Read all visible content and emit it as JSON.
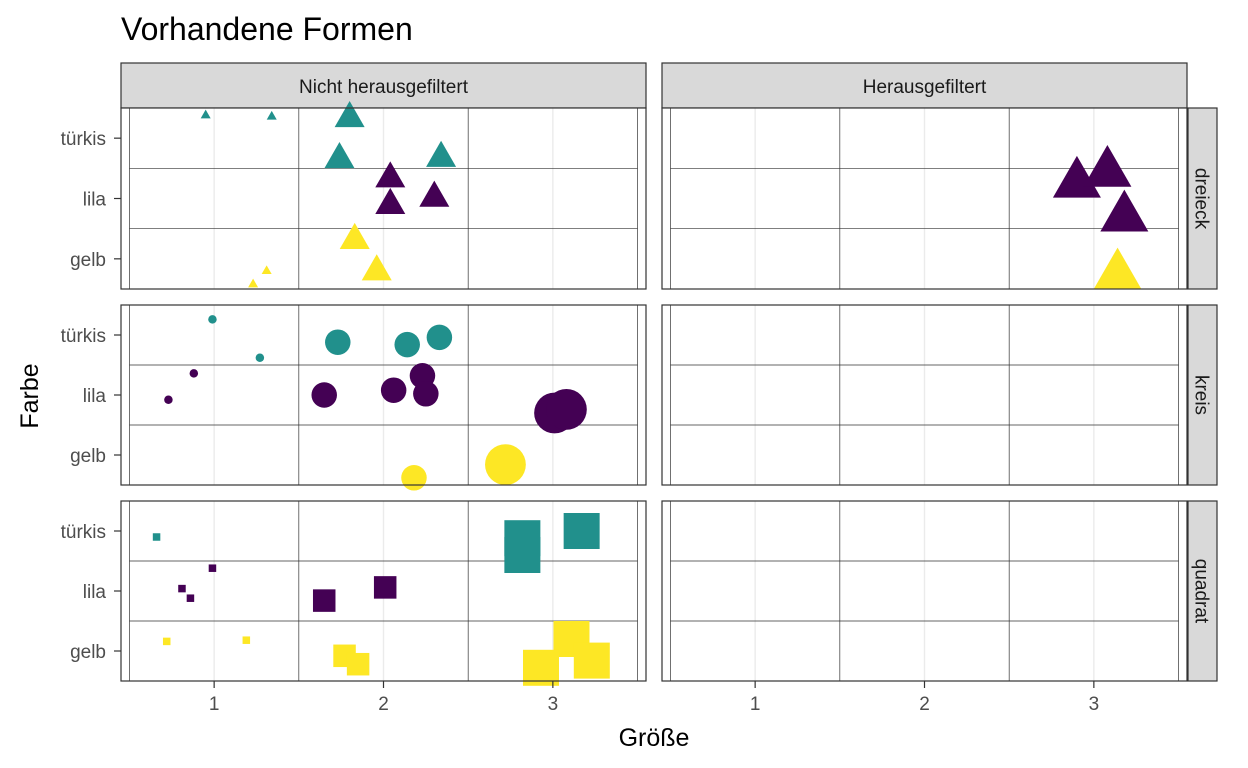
{
  "chart_data": {
    "type": "scatter",
    "title": "Vorhandene Formen",
    "xlabel": "Größe",
    "ylabel": "Farbe",
    "xlim": [
      0.45,
      3.55
    ],
    "x_ticks": [
      1,
      2,
      3
    ],
    "y_categories": [
      "gelb",
      "lila",
      "türkis"
    ],
    "grid": true,
    "facet_columns": [
      "Nicht herausgefiltert",
      "Herausgefiltert"
    ],
    "facet_rows": [
      "dreieck",
      "kreis",
      "quadrat"
    ],
    "colors": {
      "türkis": "#21908C",
      "lila": "#440154",
      "gelb": "#FDE725"
    },
    "points": [
      {
        "row": "dreieck",
        "col": "Nicht herausgefiltert",
        "farbe": "türkis",
        "x": 0.95,
        "y": 3.4,
        "size": 1
      },
      {
        "row": "dreieck",
        "col": "Nicht herausgefiltert",
        "farbe": "türkis",
        "x": 1.34,
        "y": 3.38,
        "size": 1
      },
      {
        "row": "dreieck",
        "col": "Nicht herausgefiltert",
        "farbe": "türkis",
        "x": 1.8,
        "y": 3.4,
        "size": 2
      },
      {
        "row": "dreieck",
        "col": "Nicht herausgefiltert",
        "farbe": "türkis",
        "x": 1.74,
        "y": 2.72,
        "size": 2
      },
      {
        "row": "dreieck",
        "col": "Nicht herausgefiltert",
        "farbe": "türkis",
        "x": 2.34,
        "y": 2.74,
        "size": 2
      },
      {
        "row": "dreieck",
        "col": "Nicht herausgefiltert",
        "farbe": "lila",
        "x": 2.04,
        "y": 2.4,
        "size": 2
      },
      {
        "row": "dreieck",
        "col": "Nicht herausgefiltert",
        "farbe": "lila",
        "x": 2.04,
        "y": 1.96,
        "size": 2
      },
      {
        "row": "dreieck",
        "col": "Nicht herausgefiltert",
        "farbe": "lila",
        "x": 2.3,
        "y": 2.08,
        "size": 2
      },
      {
        "row": "dreieck",
        "col": "Nicht herausgefiltert",
        "farbe": "gelb",
        "x": 1.31,
        "y": 0.82,
        "size": 1
      },
      {
        "row": "dreieck",
        "col": "Nicht herausgefiltert",
        "farbe": "gelb",
        "x": 1.23,
        "y": 0.6,
        "size": 1
      },
      {
        "row": "dreieck",
        "col": "Nicht herausgefiltert",
        "farbe": "gelb",
        "x": 1.83,
        "y": 1.38,
        "size": 2
      },
      {
        "row": "dreieck",
        "col": "Nicht herausgefiltert",
        "farbe": "gelb",
        "x": 1.96,
        "y": 0.86,
        "size": 2
      },
      {
        "row": "dreieck",
        "col": "Herausgefiltert",
        "farbe": "lila",
        "x": 2.9,
        "y": 2.36,
        "size": 3
      },
      {
        "row": "dreieck",
        "col": "Herausgefiltert",
        "farbe": "lila",
        "x": 3.08,
        "y": 2.54,
        "size": 3
      },
      {
        "row": "dreieck",
        "col": "Herausgefiltert",
        "farbe": "lila",
        "x": 3.18,
        "y": 1.8,
        "size": 3
      },
      {
        "row": "dreieck",
        "col": "Herausgefiltert",
        "farbe": "gelb",
        "x": 3.14,
        "y": 0.84,
        "size": 3
      },
      {
        "row": "kreis",
        "col": "Nicht herausgefiltert",
        "farbe": "türkis",
        "x": 0.99,
        "y": 3.26,
        "size": 1
      },
      {
        "row": "kreis",
        "col": "Nicht herausgefiltert",
        "farbe": "türkis",
        "x": 1.27,
        "y": 2.62,
        "size": 1
      },
      {
        "row": "kreis",
        "col": "Nicht herausgefiltert",
        "farbe": "türkis",
        "x": 1.73,
        "y": 2.88,
        "size": 2
      },
      {
        "row": "kreis",
        "col": "Nicht herausgefiltert",
        "farbe": "türkis",
        "x": 2.14,
        "y": 2.84,
        "size": 2
      },
      {
        "row": "kreis",
        "col": "Nicht herausgefiltert",
        "farbe": "türkis",
        "x": 2.33,
        "y": 2.96,
        "size": 2
      },
      {
        "row": "kreis",
        "col": "Nicht herausgefiltert",
        "farbe": "lila",
        "x": 0.88,
        "y": 2.36,
        "size": 1
      },
      {
        "row": "kreis",
        "col": "Nicht herausgefiltert",
        "farbe": "lila",
        "x": 0.73,
        "y": 1.92,
        "size": 1
      },
      {
        "row": "kreis",
        "col": "Nicht herausgefiltert",
        "farbe": "lila",
        "x": 1.65,
        "y": 2.0,
        "size": 2
      },
      {
        "row": "kreis",
        "col": "Nicht herausgefiltert",
        "farbe": "lila",
        "x": 2.06,
        "y": 2.08,
        "size": 2
      },
      {
        "row": "kreis",
        "col": "Nicht herausgefiltert",
        "farbe": "lila",
        "x": 2.23,
        "y": 2.32,
        "size": 2
      },
      {
        "row": "kreis",
        "col": "Nicht herausgefiltert",
        "farbe": "lila",
        "x": 2.25,
        "y": 2.02,
        "size": 2
      },
      {
        "row": "kreis",
        "col": "Nicht herausgefiltert",
        "farbe": "lila",
        "x": 3.01,
        "y": 1.7,
        "size": 3
      },
      {
        "row": "kreis",
        "col": "Nicht herausgefiltert",
        "farbe": "lila",
        "x": 3.08,
        "y": 1.76,
        "size": 3
      },
      {
        "row": "kreis",
        "col": "Nicht herausgefiltert",
        "farbe": "gelb",
        "x": 2.18,
        "y": 0.62,
        "size": 2
      },
      {
        "row": "kreis",
        "col": "Nicht herausgefiltert",
        "farbe": "gelb",
        "x": 2.72,
        "y": 0.84,
        "size": 3
      },
      {
        "row": "quadrat",
        "col": "Nicht herausgefiltert",
        "farbe": "türkis",
        "x": 0.66,
        "y": 2.9,
        "size": 1
      },
      {
        "row": "quadrat",
        "col": "Nicht herausgefiltert",
        "farbe": "türkis",
        "x": 2.82,
        "y": 2.88,
        "size": 3
      },
      {
        "row": "quadrat",
        "col": "Nicht herausgefiltert",
        "farbe": "türkis",
        "x": 2.82,
        "y": 2.6,
        "size": 3
      },
      {
        "row": "quadrat",
        "col": "Nicht herausgefiltert",
        "farbe": "türkis",
        "x": 3.17,
        "y": 3.0,
        "size": 3
      },
      {
        "row": "quadrat",
        "col": "Nicht herausgefiltert",
        "farbe": "lila",
        "x": 0.99,
        "y": 2.38,
        "size": 1
      },
      {
        "row": "quadrat",
        "col": "Nicht herausgefiltert",
        "farbe": "lila",
        "x": 0.81,
        "y": 2.04,
        "size": 1
      },
      {
        "row": "quadrat",
        "col": "Nicht herausgefiltert",
        "farbe": "lila",
        "x": 0.86,
        "y": 1.88,
        "size": 1
      },
      {
        "row": "quadrat",
        "col": "Nicht herausgefiltert",
        "farbe": "lila",
        "x": 1.65,
        "y": 1.84,
        "size": 2
      },
      {
        "row": "quadrat",
        "col": "Nicht herausgefiltert",
        "farbe": "lila",
        "x": 2.01,
        "y": 2.06,
        "size": 2
      },
      {
        "row": "quadrat",
        "col": "Nicht herausgefiltert",
        "farbe": "gelb",
        "x": 0.72,
        "y": 1.16,
        "size": 1
      },
      {
        "row": "quadrat",
        "col": "Nicht herausgefiltert",
        "farbe": "gelb",
        "x": 1.19,
        "y": 1.18,
        "size": 1
      },
      {
        "row": "quadrat",
        "col": "Nicht herausgefiltert",
        "farbe": "gelb",
        "x": 1.77,
        "y": 0.92,
        "size": 2
      },
      {
        "row": "quadrat",
        "col": "Nicht herausgefiltert",
        "farbe": "gelb",
        "x": 1.85,
        "y": 0.78,
        "size": 2
      },
      {
        "row": "quadrat",
        "col": "Nicht herausgefiltert",
        "farbe": "gelb",
        "x": 3.11,
        "y": 1.2,
        "size": 3
      },
      {
        "row": "quadrat",
        "col": "Nicht herausgefiltert",
        "farbe": "gelb",
        "x": 2.93,
        "y": 0.72,
        "size": 3
      },
      {
        "row": "quadrat",
        "col": "Nicht herausgefiltert",
        "farbe": "gelb",
        "x": 3.23,
        "y": 0.84,
        "size": 3
      }
    ]
  }
}
